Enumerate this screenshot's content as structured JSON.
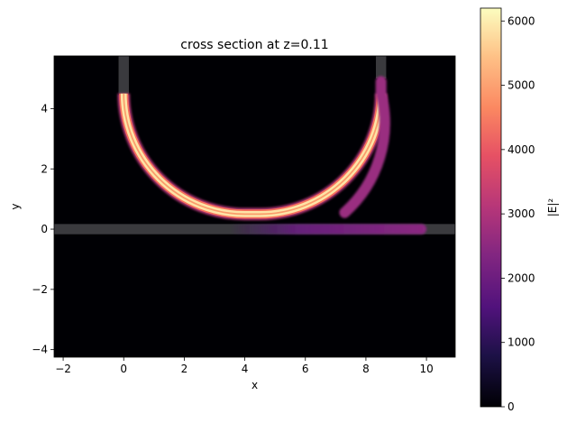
{
  "chart_data": {
    "type": "heatmap",
    "title": "cross section at z=0.11",
    "xlabel": "x",
    "ylabel": "y",
    "xlim": [
      -2.3,
      10.95
    ],
    "ylim": [
      -4.25,
      5.75
    ],
    "xticks": [
      -2,
      0,
      2,
      4,
      6,
      8,
      10
    ],
    "yticks": [
      -4,
      -2,
      0,
      2,
      4
    ],
    "xtick_labels": [
      "−2",
      "0",
      "2",
      "4",
      "6",
      "8",
      "10"
    ],
    "ytick_labels": [
      "−4",
      "−2",
      "0",
      "2",
      "4"
    ],
    "colormap": "magma",
    "colorbar": {
      "label": "|E|²",
      "range": [
        0,
        6200
      ],
      "ticks": [
        0,
        1000,
        2000,
        3000,
        4000,
        5000,
        6000
      ],
      "tick_labels": [
        "0",
        "1000",
        "2000",
        "3000",
        "4000",
        "5000",
        "6000"
      ]
    },
    "waveguides": {
      "straight_bus_y": 0,
      "ring_left_x": 0,
      "ring_right_x": 8.5,
      "ring_bottom_y": 0.5,
      "ring_top_y": 4.5,
      "ring_corner_radius": 4
    },
    "field": {
      "ring_peak": 6000,
      "bus_peak": 2300,
      "bus_x_range": [
        3.5,
        10
      ],
      "right_arm_peak": 2300
    }
  }
}
